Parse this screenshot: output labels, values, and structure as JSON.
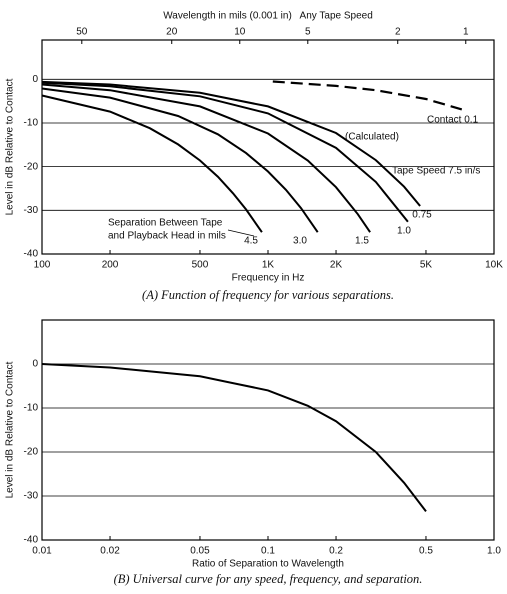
{
  "chart_data": [
    {
      "type": "line",
      "x_log": true,
      "x2label": "Wavelength in mils (0.001 in)   Any Tape Speed",
      "xlabel": "Frequency in Hz",
      "ylabel": "Level in dB Relative to Contact",
      "caption": "(A) Function of frequency for various separations.",
      "xlim": [
        100,
        10000
      ],
      "xticks": [
        100,
        200,
        500,
        {
          "value": 1000,
          "label": "1K"
        },
        {
          "value": 2000,
          "label": "2K"
        },
        {
          "value": 5000,
          "label": "5K"
        },
        {
          "value": 10000,
          "label": "10K"
        }
      ],
      "x2lim": [
        75,
        0.75
      ],
      "x2ticks": [
        50,
        20,
        10,
        5,
        2,
        1
      ],
      "ylim": [
        -40,
        9
      ],
      "yticks": [
        0,
        -10,
        -20,
        -30,
        -40
      ],
      "grid": true,
      "series": [
        {
          "name": "4.5",
          "color": "#000000",
          "x": [
            100,
            200,
            300,
            400,
            500,
            600,
            700,
            800,
            940
          ],
          "values": [
            -3.7,
            -7.4,
            -11.2,
            -14.9,
            -18.6,
            -22.3,
            -26.1,
            -29.8,
            -35
          ]
        },
        {
          "name": "3.0",
          "color": "#000000",
          "x": [
            100,
            200,
            400,
            600,
            800,
            1000,
            1200,
            1400,
            1660
          ],
          "values": [
            -2.1,
            -4.2,
            -8.4,
            -12.6,
            -16.9,
            -21.1,
            -25.3,
            -29.5,
            -35
          ]
        },
        {
          "name": "1.5",
          "color": "#000000",
          "x": [
            100,
            200,
            500,
            1000,
            1500,
            2000,
            2500,
            2830
          ],
          "values": [
            -1.2,
            -2.5,
            -6.2,
            -12.4,
            -18.6,
            -24.7,
            -30.9,
            -35
          ]
        },
        {
          "name": "1.0",
          "color": "#000000",
          "x": [
            100,
            200,
            500,
            1000,
            2000,
            3000,
            4160
          ],
          "values": [
            -0.8,
            -1.6,
            -3.9,
            -7.8,
            -15.7,
            -23.5,
            -32.6
          ]
        },
        {
          "name": "0.75",
          "color": "#000000",
          "x": [
            100,
            200,
            500,
            1000,
            2000,
            3000,
            4000,
            4710
          ],
          "values": [
            -0.6,
            -1.2,
            -3.1,
            -6.2,
            -12.3,
            -18.5,
            -24.6,
            -29
          ]
        },
        {
          "name": "Contact 0.1",
          "color": "#000000",
          "dashed": true,
          "x": [
            1050,
            2000,
            3000,
            5000,
            7200
          ],
          "values": [
            -0.5,
            -1.5,
            -2.5,
            -4.5,
            -6.9
          ]
        }
      ],
      "annotations": [
        "(Calculated)",
        "Tape Speed 7.5 in/s",
        "Separation Between Tape",
        "and Playback Head in mils"
      ]
    },
    {
      "type": "line",
      "x_log": true,
      "xlabel": "Ratio of Separation to Wavelength",
      "ylabel": "Level in dB Relative to Contact",
      "caption": "(B) Universal curve for any speed, frequency, and separation.",
      "xlim": [
        0.01,
        1
      ],
      "xticks": [
        0.01,
        0.02,
        0.05,
        0.1,
        0.2,
        0.5,
        {
          "value": 1,
          "label": "1.0"
        }
      ],
      "ylim": [
        -40,
        10
      ],
      "yticks": [
        0,
        -10,
        -20,
        -30,
        -40
      ],
      "grid": true,
      "series": [
        {
          "color": "#000000",
          "x": [
            0.01,
            0.02,
            0.05,
            0.1,
            0.15,
            0.2,
            0.3,
            0.4,
            0.5
          ],
          "values": [
            0,
            -0.8,
            -2.8,
            -6,
            -9.5,
            -13,
            -20,
            -27,
            -33.5
          ]
        }
      ]
    }
  ]
}
